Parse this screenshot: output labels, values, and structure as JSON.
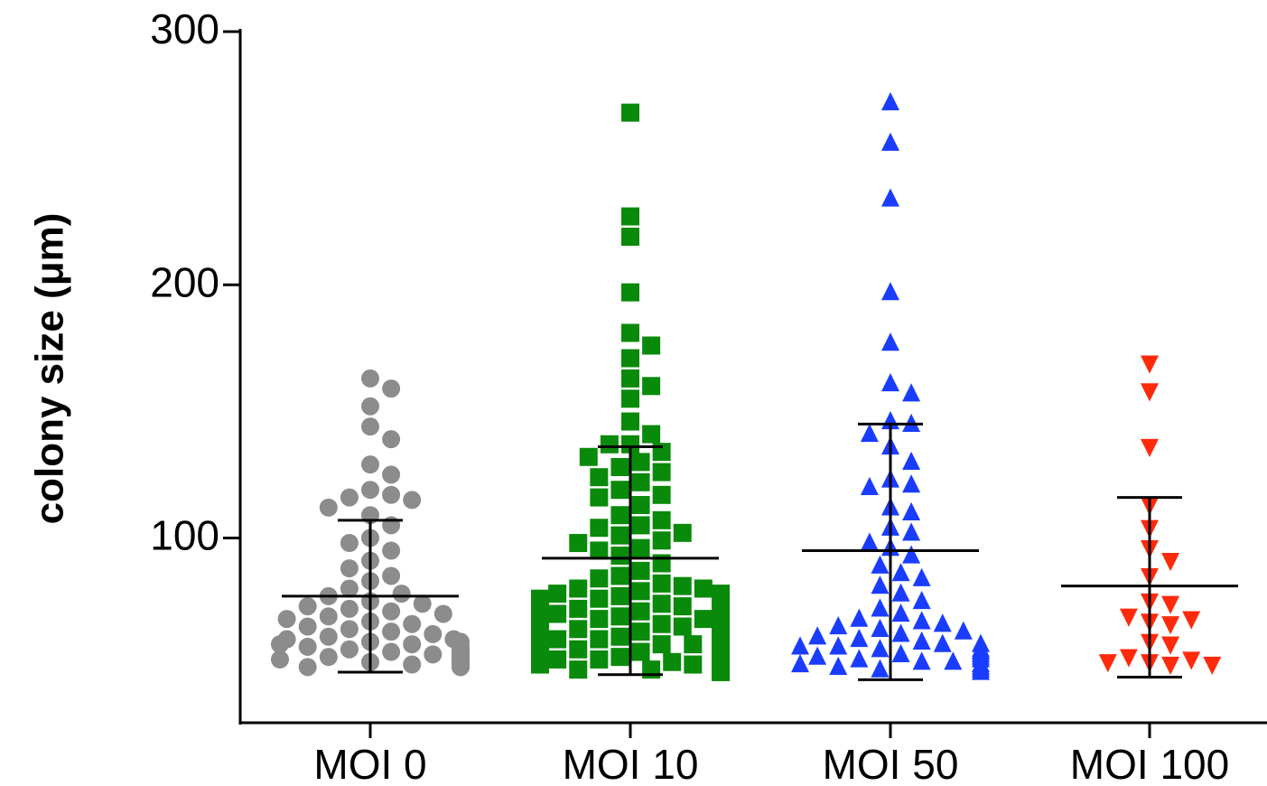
{
  "chart_data": {
    "type": "scatter",
    "ylabel": "colony size (μm)",
    "xlabel": "",
    "title": "",
    "ylim": [
      27,
      300
    ],
    "yticks": [
      100,
      200,
      300
    ],
    "categories": [
      "MOI 0",
      "MOI 10",
      "MOI 50",
      "MOI 100"
    ],
    "legend": "none",
    "grid": false,
    "series": [
      {
        "category": "MOI 0",
        "marker": "circle",
        "color": "#8c8c8c",
        "mean": 77,
        "sd_low": 47,
        "sd_high": 107,
        "values": [
          163,
          159,
          152,
          144,
          139,
          129,
          125,
          119,
          117,
          116,
          115,
          112,
          109,
          105,
          100,
          98,
          95,
          91,
          88,
          85,
          83,
          80,
          78,
          77,
          75,
          74,
          73,
          72,
          71,
          70,
          69,
          68,
          67,
          66,
          65,
          64,
          63,
          62,
          61,
          60,
          60,
          59,
          59,
          58,
          58,
          57,
          57,
          56,
          56,
          55,
          55,
          54,
          54,
          53,
          53,
          52,
          52,
          51,
          51,
          50,
          50,
          50,
          49,
          49,
          49
        ]
      },
      {
        "category": "MOI 10",
        "marker": "square",
        "color": "#0a8a0a",
        "mean": 92,
        "sd_low": 46,
        "sd_high": 136,
        "values": [
          268,
          227,
          219,
          197,
          181,
          176,
          171,
          163,
          160,
          155,
          146,
          141,
          137,
          137,
          134,
          132,
          130,
          128,
          126,
          124,
          122,
          119,
          117,
          116,
          113,
          109,
          107,
          105,
          104,
          102,
          101,
          99,
          98,
          96,
          95,
          93,
          90,
          87,
          85,
          84,
          82,
          81,
          80,
          79,
          78,
          77,
          76,
          75,
          74,
          73,
          72,
          71,
          70,
          69,
          68,
          67,
          66,
          65,
          64,
          63,
          62,
          61,
          60,
          59,
          58,
          57,
          56,
          55,
          54,
          53,
          52,
          51,
          50,
          49,
          48,
          60,
          62,
          64,
          66,
          68,
          70,
          72,
          74,
          76,
          78,
          80,
          58,
          56,
          54,
          52,
          50,
          48,
          47
        ]
      },
      {
        "category": "MOI 50",
        "marker": "triangle-up",
        "color": "#1a3cff",
        "mean": 95,
        "sd_low": 44,
        "sd_high": 145,
        "values": [
          272,
          256,
          234,
          197,
          177,
          161,
          157,
          146,
          145,
          141,
          136,
          130,
          123,
          121,
          120,
          112,
          110,
          104,
          102,
          98,
          96,
          93,
          89,
          86,
          84,
          81,
          78,
          75,
          72,
          70,
          68,
          67,
          66,
          65,
          64,
          63,
          62,
          61,
          60,
          59,
          58,
          58,
          57,
          57,
          56,
          56,
          55,
          55,
          54,
          54,
          53,
          53,
          52,
          52,
          51,
          51,
          50,
          50,
          49,
          49,
          48,
          48,
          47
        ]
      },
      {
        "category": "MOI 100",
        "marker": "triangle-down",
        "color": "#ff2a0a",
        "mean": 81,
        "sd_low": 45,
        "sd_high": 116,
        "values": [
          169,
          158,
          136,
          113,
          104,
          96,
          91,
          85,
          75,
          74,
          69,
          68,
          67,
          66,
          59,
          58,
          53,
          52,
          51,
          51,
          50,
          50
        ]
      }
    ]
  }
}
